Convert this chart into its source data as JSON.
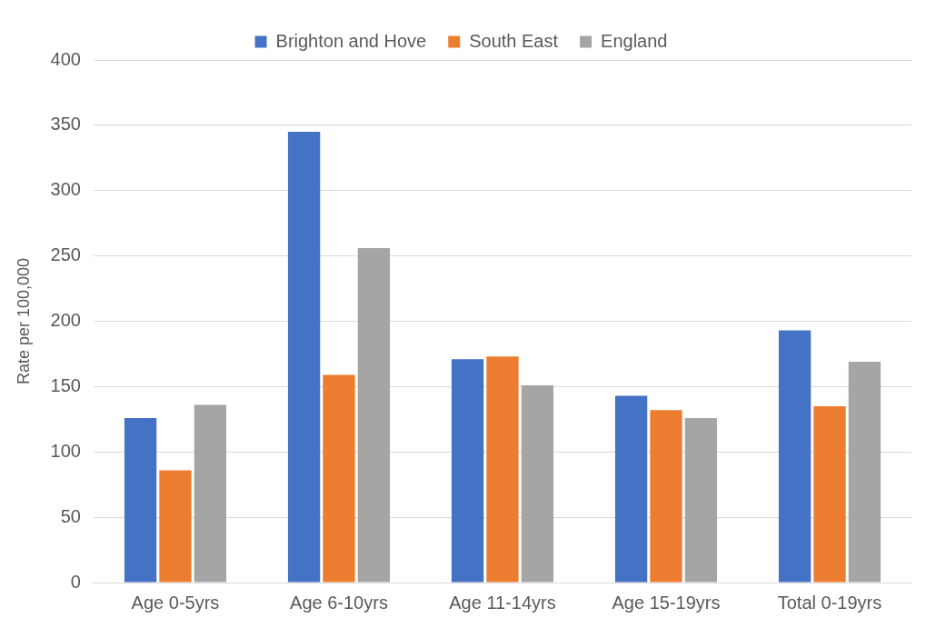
{
  "chart_data": {
    "type": "bar",
    "ylabel": "Rate per 100,000",
    "categories": [
      "Age 0-5yrs",
      "Age 6-10yrs",
      "Age 11-14yrs",
      "Age 15-19yrs",
      "Total 0-19yrs"
    ],
    "series": [
      {
        "name": "Brighton and Hove",
        "color": "#4472c4",
        "values": [
          126,
          345,
          171,
          143,
          193
        ]
      },
      {
        "name": "South East",
        "color": "#ed7d31",
        "values": [
          86,
          159,
          173,
          132,
          135
        ]
      },
      {
        "name": "England",
        "color": "#a5a5a5",
        "values": [
          136,
          256,
          151,
          126,
          169
        ]
      }
    ],
    "ylim": [
      0,
      400
    ],
    "yticks": [
      0,
      50,
      100,
      150,
      200,
      250,
      300,
      350,
      400
    ],
    "grid": "y",
    "legend": "top"
  }
}
